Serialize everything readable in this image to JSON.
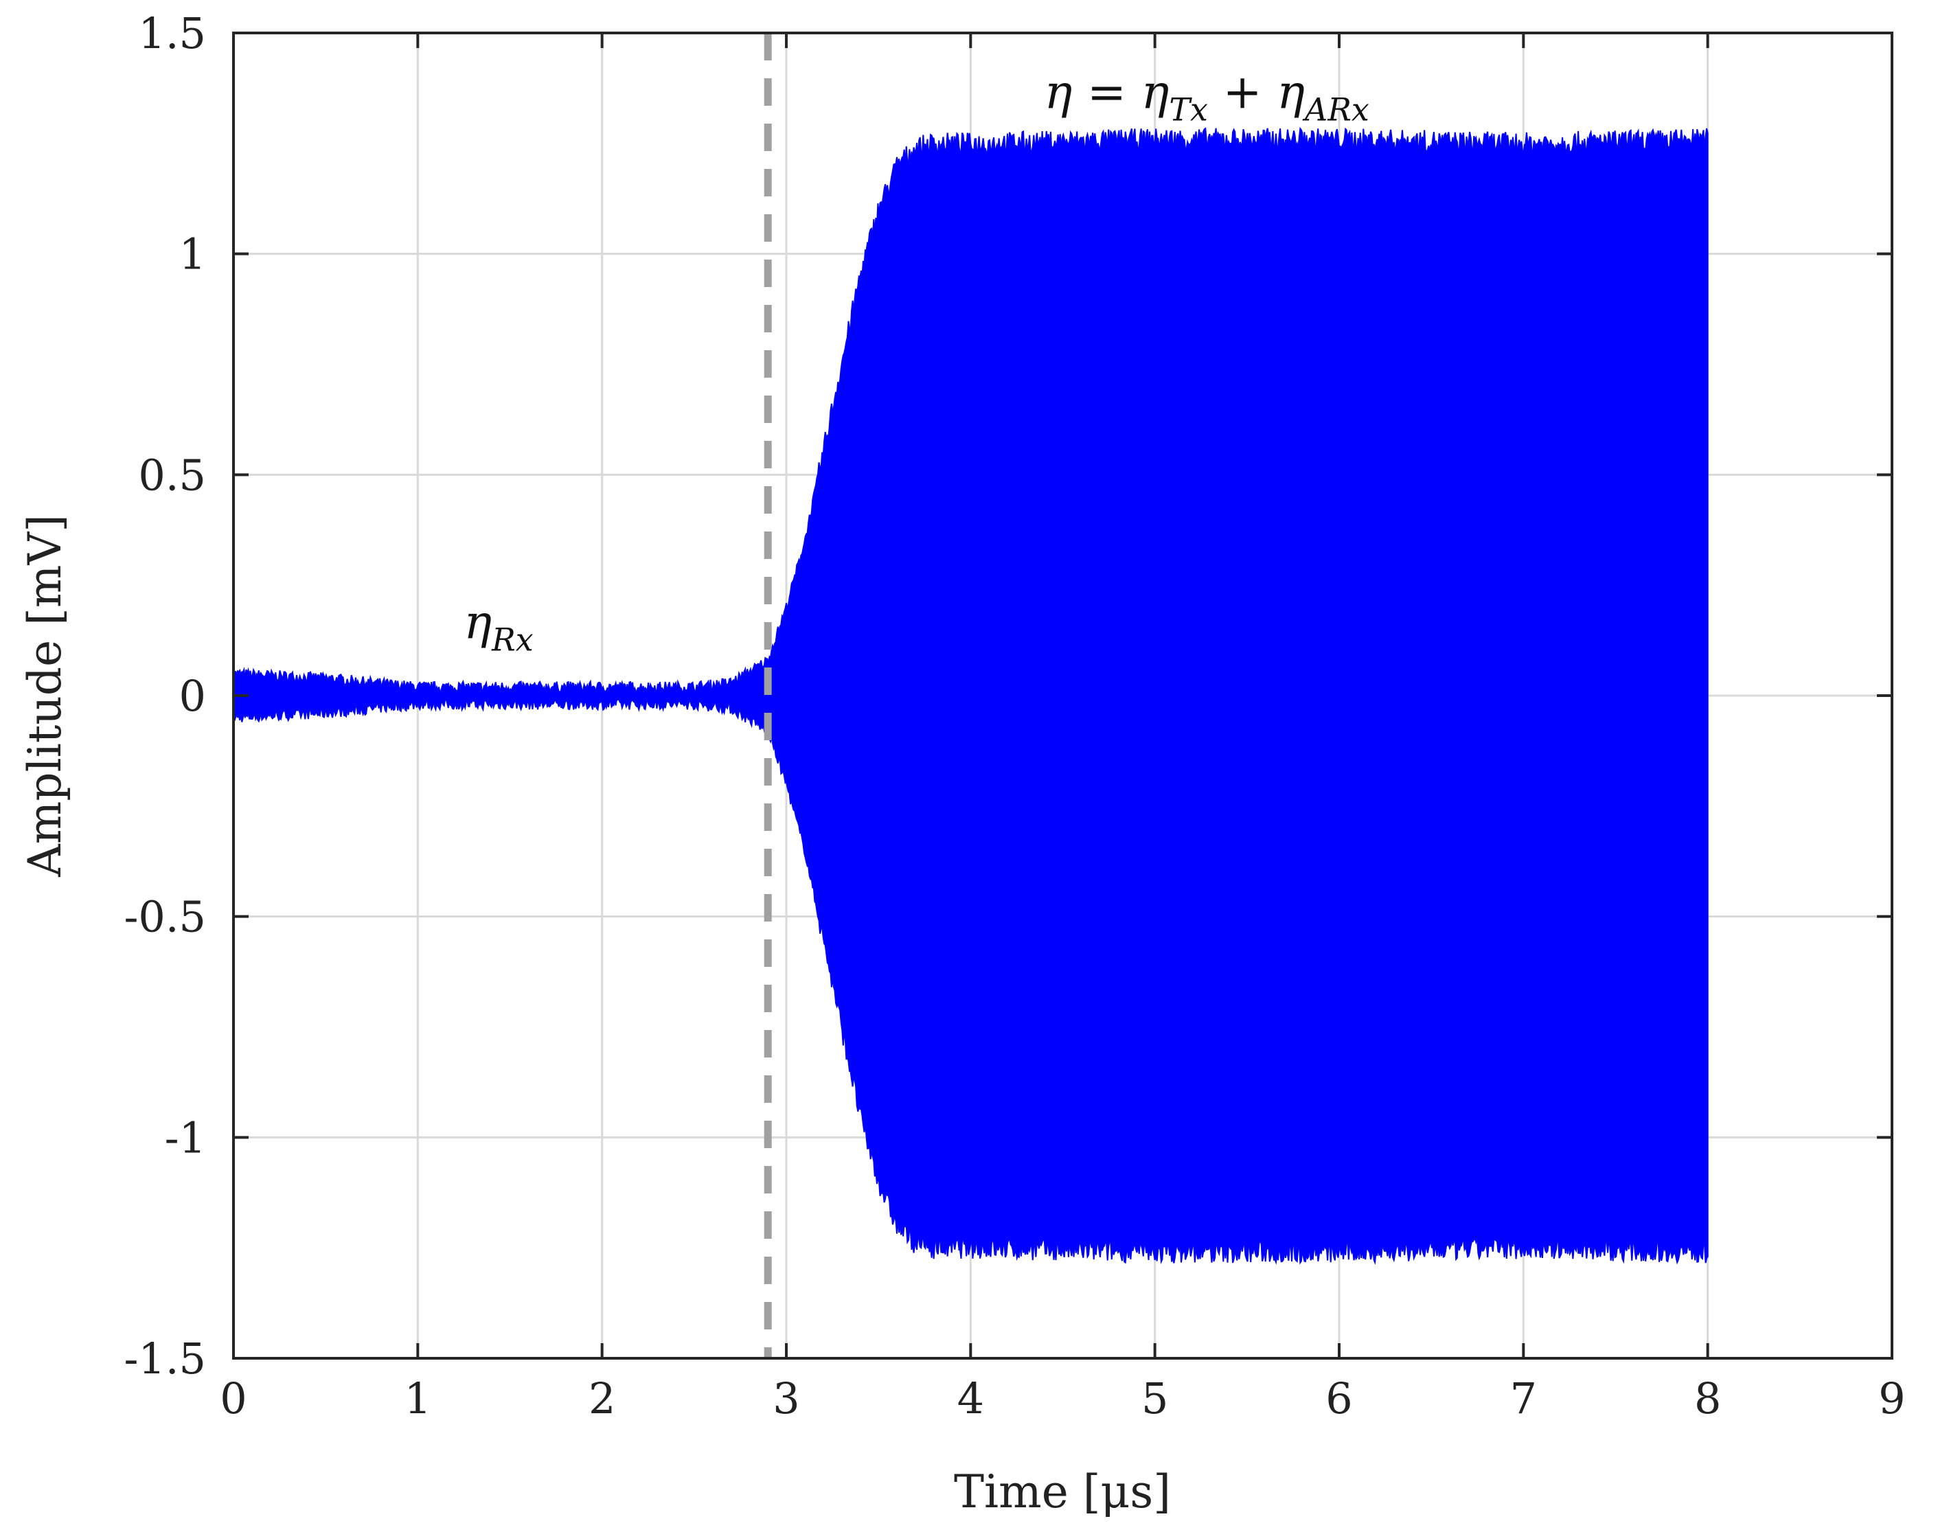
{
  "chart_data": {
    "type": "line",
    "title": "",
    "xlabel": "Time [μs]",
    "ylabel": "Amplitude [mV]",
    "xlim": [
      0,
      9
    ],
    "ylim": [
      -1.5,
      1.5
    ],
    "xticks": [
      "0",
      "1",
      "2",
      "3",
      "4",
      "5",
      "6",
      "7",
      "8",
      "9"
    ],
    "yticks": [
      "1.5",
      "1",
      "0.5",
      "0",
      "-0.5",
      "-1",
      "-1.5"
    ],
    "grid": true,
    "series_color": "#0000ff",
    "marker_color": "#a0a0a0",
    "envelope": {
      "t": [
        0,
        0.5,
        1.0,
        1.5,
        2.0,
        2.5,
        2.7,
        2.9,
        3.0,
        3.1,
        3.2,
        3.3,
        3.4,
        3.5,
        3.6,
        3.7,
        3.8,
        4.0,
        5.0,
        6.0,
        7.0,
        8.0
      ],
      "amplitude": [
        0.05,
        0.04,
        0.02,
        0.02,
        0.02,
        0.02,
        0.03,
        0.08,
        0.2,
        0.35,
        0.55,
        0.75,
        0.95,
        1.1,
        1.2,
        1.24,
        1.25,
        1.25,
        1.26,
        1.26,
        1.25,
        1.26
      ]
    },
    "annotations": [
      {
        "t": 2.9,
        "kind": "dashed-vertical-line",
        "y_range": [
          -1.5,
          1.5
        ]
      }
    ],
    "labels": {
      "rx": {
        "base": "η",
        "sub": "Rx",
        "x": 1.25,
        "y": 0.13
      },
      "total": {
        "base": "η",
        "eq": " = ",
        "base2": "η",
        "sub2": "Tx",
        "plus": " + ",
        "base3": "η",
        "sub3": "ARx",
        "x": 4.4,
        "y": 1.33
      }
    }
  }
}
